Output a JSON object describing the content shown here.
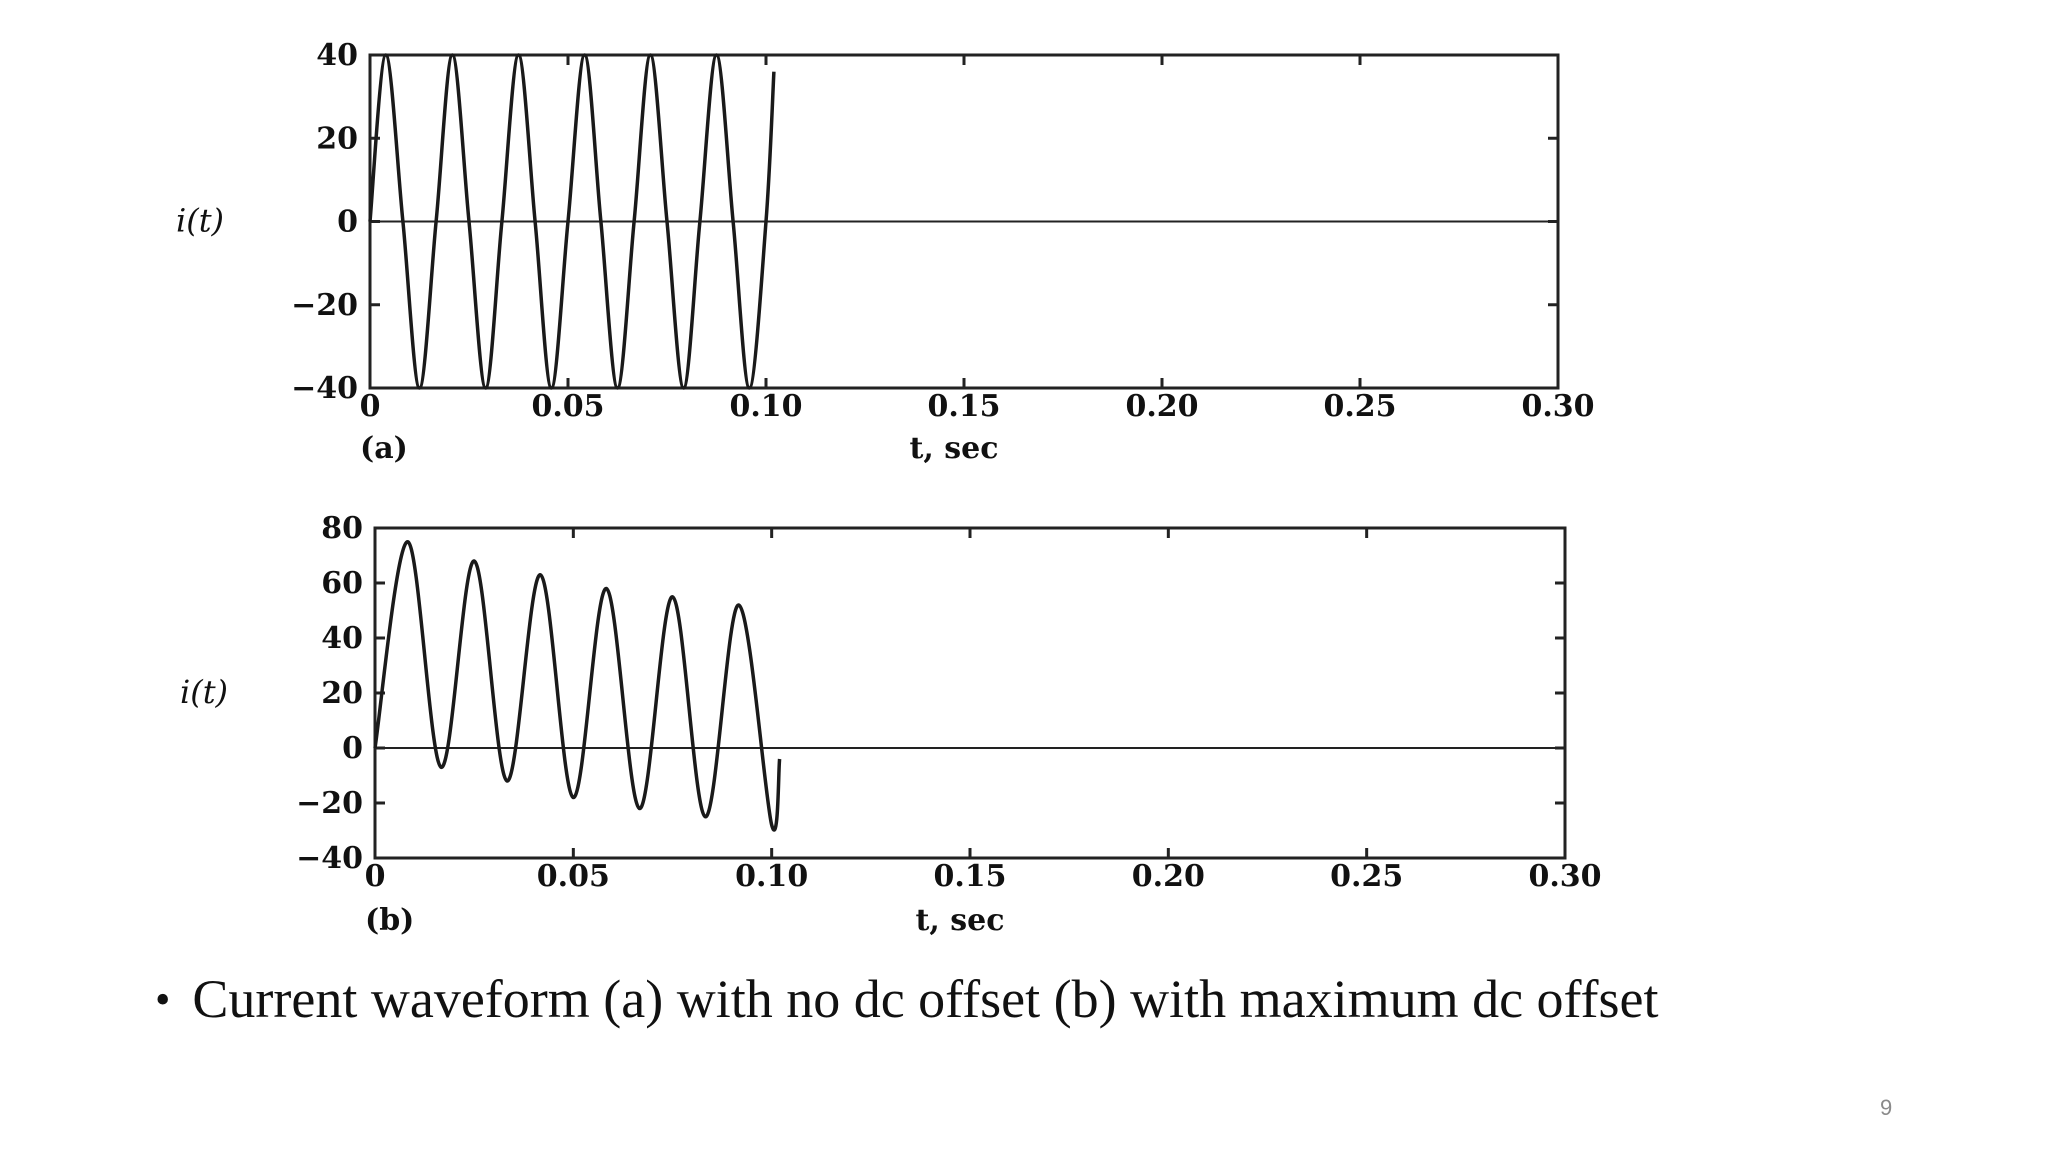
{
  "slide": {
    "caption": "Current waveform (a) with no dc offset (b) with maximum dc offset",
    "bullet": "•",
    "number": "9"
  },
  "chart_data": [
    {
      "type": "line",
      "panel_label": "(a)",
      "title": "",
      "xlabel": "t, sec",
      "ylabel": "i(t)",
      "xlim": [
        0,
        0.3
      ],
      "ylim": [
        -40,
        40
      ],
      "xticks": [
        0,
        0.05,
        0.1,
        0.15,
        0.2,
        0.25,
        0.3
      ],
      "xtick_labels": [
        "0",
        "0.05",
        "0.10",
        "0.15",
        "0.20",
        "0.25",
        "0.30"
      ],
      "yticks": [
        -40,
        -20,
        0,
        20,
        40
      ],
      "ytick_labels": [
        "−40",
        "−20",
        "0",
        "20",
        "40"
      ],
      "grid": false,
      "series": [
        {
          "x": [
            0,
            0.004,
            0.0083,
            0.0125,
            0.0167,
            0.0208,
            0.025,
            0.0292,
            0.0333,
            0.0375,
            0.0417,
            0.0458,
            0.05,
            0.0542,
            0.0583,
            0.0625,
            0.0667,
            0.0708,
            0.075,
            0.0792,
            0.0833,
            0.0875,
            0.0917,
            0.0958,
            0.1,
            0.102
          ],
          "y": [
            0,
            40,
            0,
            -40,
            0,
            40,
            0,
            -40,
            0,
            40,
            0,
            -40,
            0,
            40,
            0,
            -40,
            0,
            40,
            0,
            -40,
            0,
            40,
            0,
            -40,
            0,
            36
          ]
        }
      ]
    },
    {
      "type": "line",
      "panel_label": "(b)",
      "title": "",
      "xlabel": "t, sec",
      "ylabel": "i(t)",
      "xlim": [
        0,
        0.3
      ],
      "ylim": [
        -40,
        80
      ],
      "xticks": [
        0,
        0.05,
        0.1,
        0.15,
        0.2,
        0.25,
        0.3
      ],
      "xtick_labels": [
        "0",
        "0.05",
        "0.10",
        "0.15",
        "0.20",
        "0.25",
        "0.30"
      ],
      "yticks": [
        -40,
        -20,
        0,
        20,
        40,
        60,
        80
      ],
      "ytick_labels": [
        "−40",
        "−20",
        "0",
        "20",
        "40",
        "60",
        "80"
      ],
      "grid": false,
      "series": [
        {
          "x": [
            0,
            0.0083,
            0.0167,
            0.025,
            0.0333,
            0.0417,
            0.05,
            0.0583,
            0.0667,
            0.075,
            0.0833,
            0.0917,
            0.1,
            0.102
          ],
          "y": [
            0,
            75,
            -7,
            68,
            -12,
            63,
            -18,
            58,
            -22,
            55,
            -25,
            52,
            -28,
            -4
          ]
        }
      ]
    }
  ]
}
